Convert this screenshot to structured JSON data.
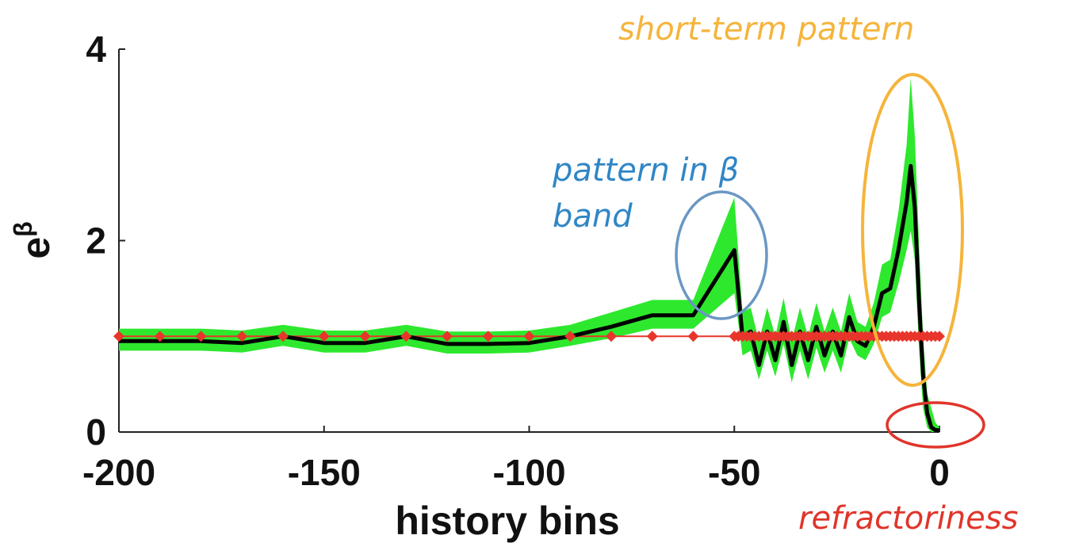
{
  "chart_data": {
    "type": "line",
    "xlabel": "history bins",
    "ylabel": "e",
    "ylabel_sup": "β",
    "xlim": [
      -200,
      0
    ],
    "ylim": [
      0,
      4
    ],
    "xticks": [
      -200,
      -150,
      -100,
      -50,
      0
    ],
    "yticks": [
      0,
      2,
      4
    ],
    "series": [
      {
        "values_x": [
          -200,
          -190,
          -180,
          -170,
          -160,
          -150,
          -140,
          -130,
          -120,
          -110,
          -100,
          -90,
          -80,
          -70,
          -60,
          -50,
          -48,
          -46,
          -44,
          -42,
          -40,
          -38,
          -36,
          -34,
          -32,
          -30,
          -28,
          -26,
          -24,
          -22,
          -20,
          -18,
          -16,
          -14,
          -12,
          -10,
          -8,
          -7,
          -6,
          -5,
          -4,
          -3,
          -2,
          -1,
          0
        ],
        "values_y": [
          0.95,
          0.95,
          0.95,
          0.93,
          1.0,
          0.93,
          0.93,
          1.0,
          0.92,
          0.92,
          0.93,
          1.0,
          1.1,
          1.22,
          1.22,
          1.9,
          1.0,
          1.05,
          0.7,
          1.05,
          0.75,
          1.15,
          0.7,
          1.05,
          0.75,
          1.1,
          0.8,
          1.05,
          0.8,
          1.2,
          0.95,
          0.9,
          1.1,
          1.45,
          1.5,
          1.9,
          2.4,
          2.78,
          2.35,
          1.4,
          0.6,
          0.2,
          0.05,
          0.02,
          0.02
        ],
        "ci_lower": [
          0.85,
          0.85,
          0.85,
          0.83,
          0.9,
          0.83,
          0.83,
          0.9,
          0.82,
          0.82,
          0.83,
          0.9,
          0.98,
          1.08,
          1.08,
          1.45,
          0.8,
          0.85,
          0.55,
          0.85,
          0.58,
          0.92,
          0.52,
          0.85,
          0.55,
          0.88,
          0.62,
          0.85,
          0.62,
          0.98,
          0.8,
          0.75,
          0.92,
          1.2,
          1.25,
          1.55,
          1.9,
          2.1,
          1.8,
          0.9,
          0.25,
          0.05,
          0.0,
          0.0,
          0.0
        ],
        "ci_upper": [
          1.08,
          1.08,
          1.08,
          1.06,
          1.12,
          1.06,
          1.06,
          1.12,
          1.05,
          1.05,
          1.06,
          1.12,
          1.25,
          1.38,
          1.38,
          2.45,
          1.25,
          1.3,
          0.95,
          1.3,
          1.0,
          1.4,
          0.95,
          1.3,
          1.0,
          1.35,
          1.05,
          1.3,
          1.05,
          1.45,
          1.15,
          1.1,
          1.35,
          1.75,
          1.8,
          2.3,
          3.0,
          3.7,
          3.1,
          2.0,
          1.0,
          0.4,
          0.25,
          0.1,
          0.05
        ]
      }
    ],
    "reference": {
      "y": 1.0,
      "x_markers": [
        -200,
        -190,
        -180,
        -170,
        -160,
        -150,
        -140,
        -130,
        -120,
        -110,
        -100,
        -90,
        -80,
        -70,
        -60,
        -50,
        -49,
        -48,
        -47,
        -46,
        -45,
        -44,
        -43,
        -42,
        -41,
        -40,
        -39,
        -38,
        -37,
        -36,
        -35,
        -34,
        -33,
        -32,
        -31,
        -30,
        -29,
        -28,
        -27,
        -26,
        -25,
        -24,
        -23,
        -22,
        -21,
        -20,
        -19,
        -18,
        -17,
        -16,
        -15,
        -14,
        -13,
        -12,
        -11,
        -10,
        -9,
        -8,
        -7,
        -6,
        -5,
        -4,
        -3,
        -2,
        -1,
        0
      ]
    },
    "annotations": [
      {
        "text": "short-term pattern",
        "color": "#f5b43b"
      },
      {
        "text_line1": "pattern in β",
        "text_line2": "band",
        "color": "#2f86c6"
      },
      {
        "text": "refractoriness",
        "color": "#e0352b"
      }
    ],
    "colors": {
      "line": "#000000",
      "band": "#2ee82e",
      "reference": "#e8352b",
      "circle_beta": "#6b97c4",
      "circle_short": "#f5b43b",
      "circle_refractory": "#e0352b"
    }
  }
}
